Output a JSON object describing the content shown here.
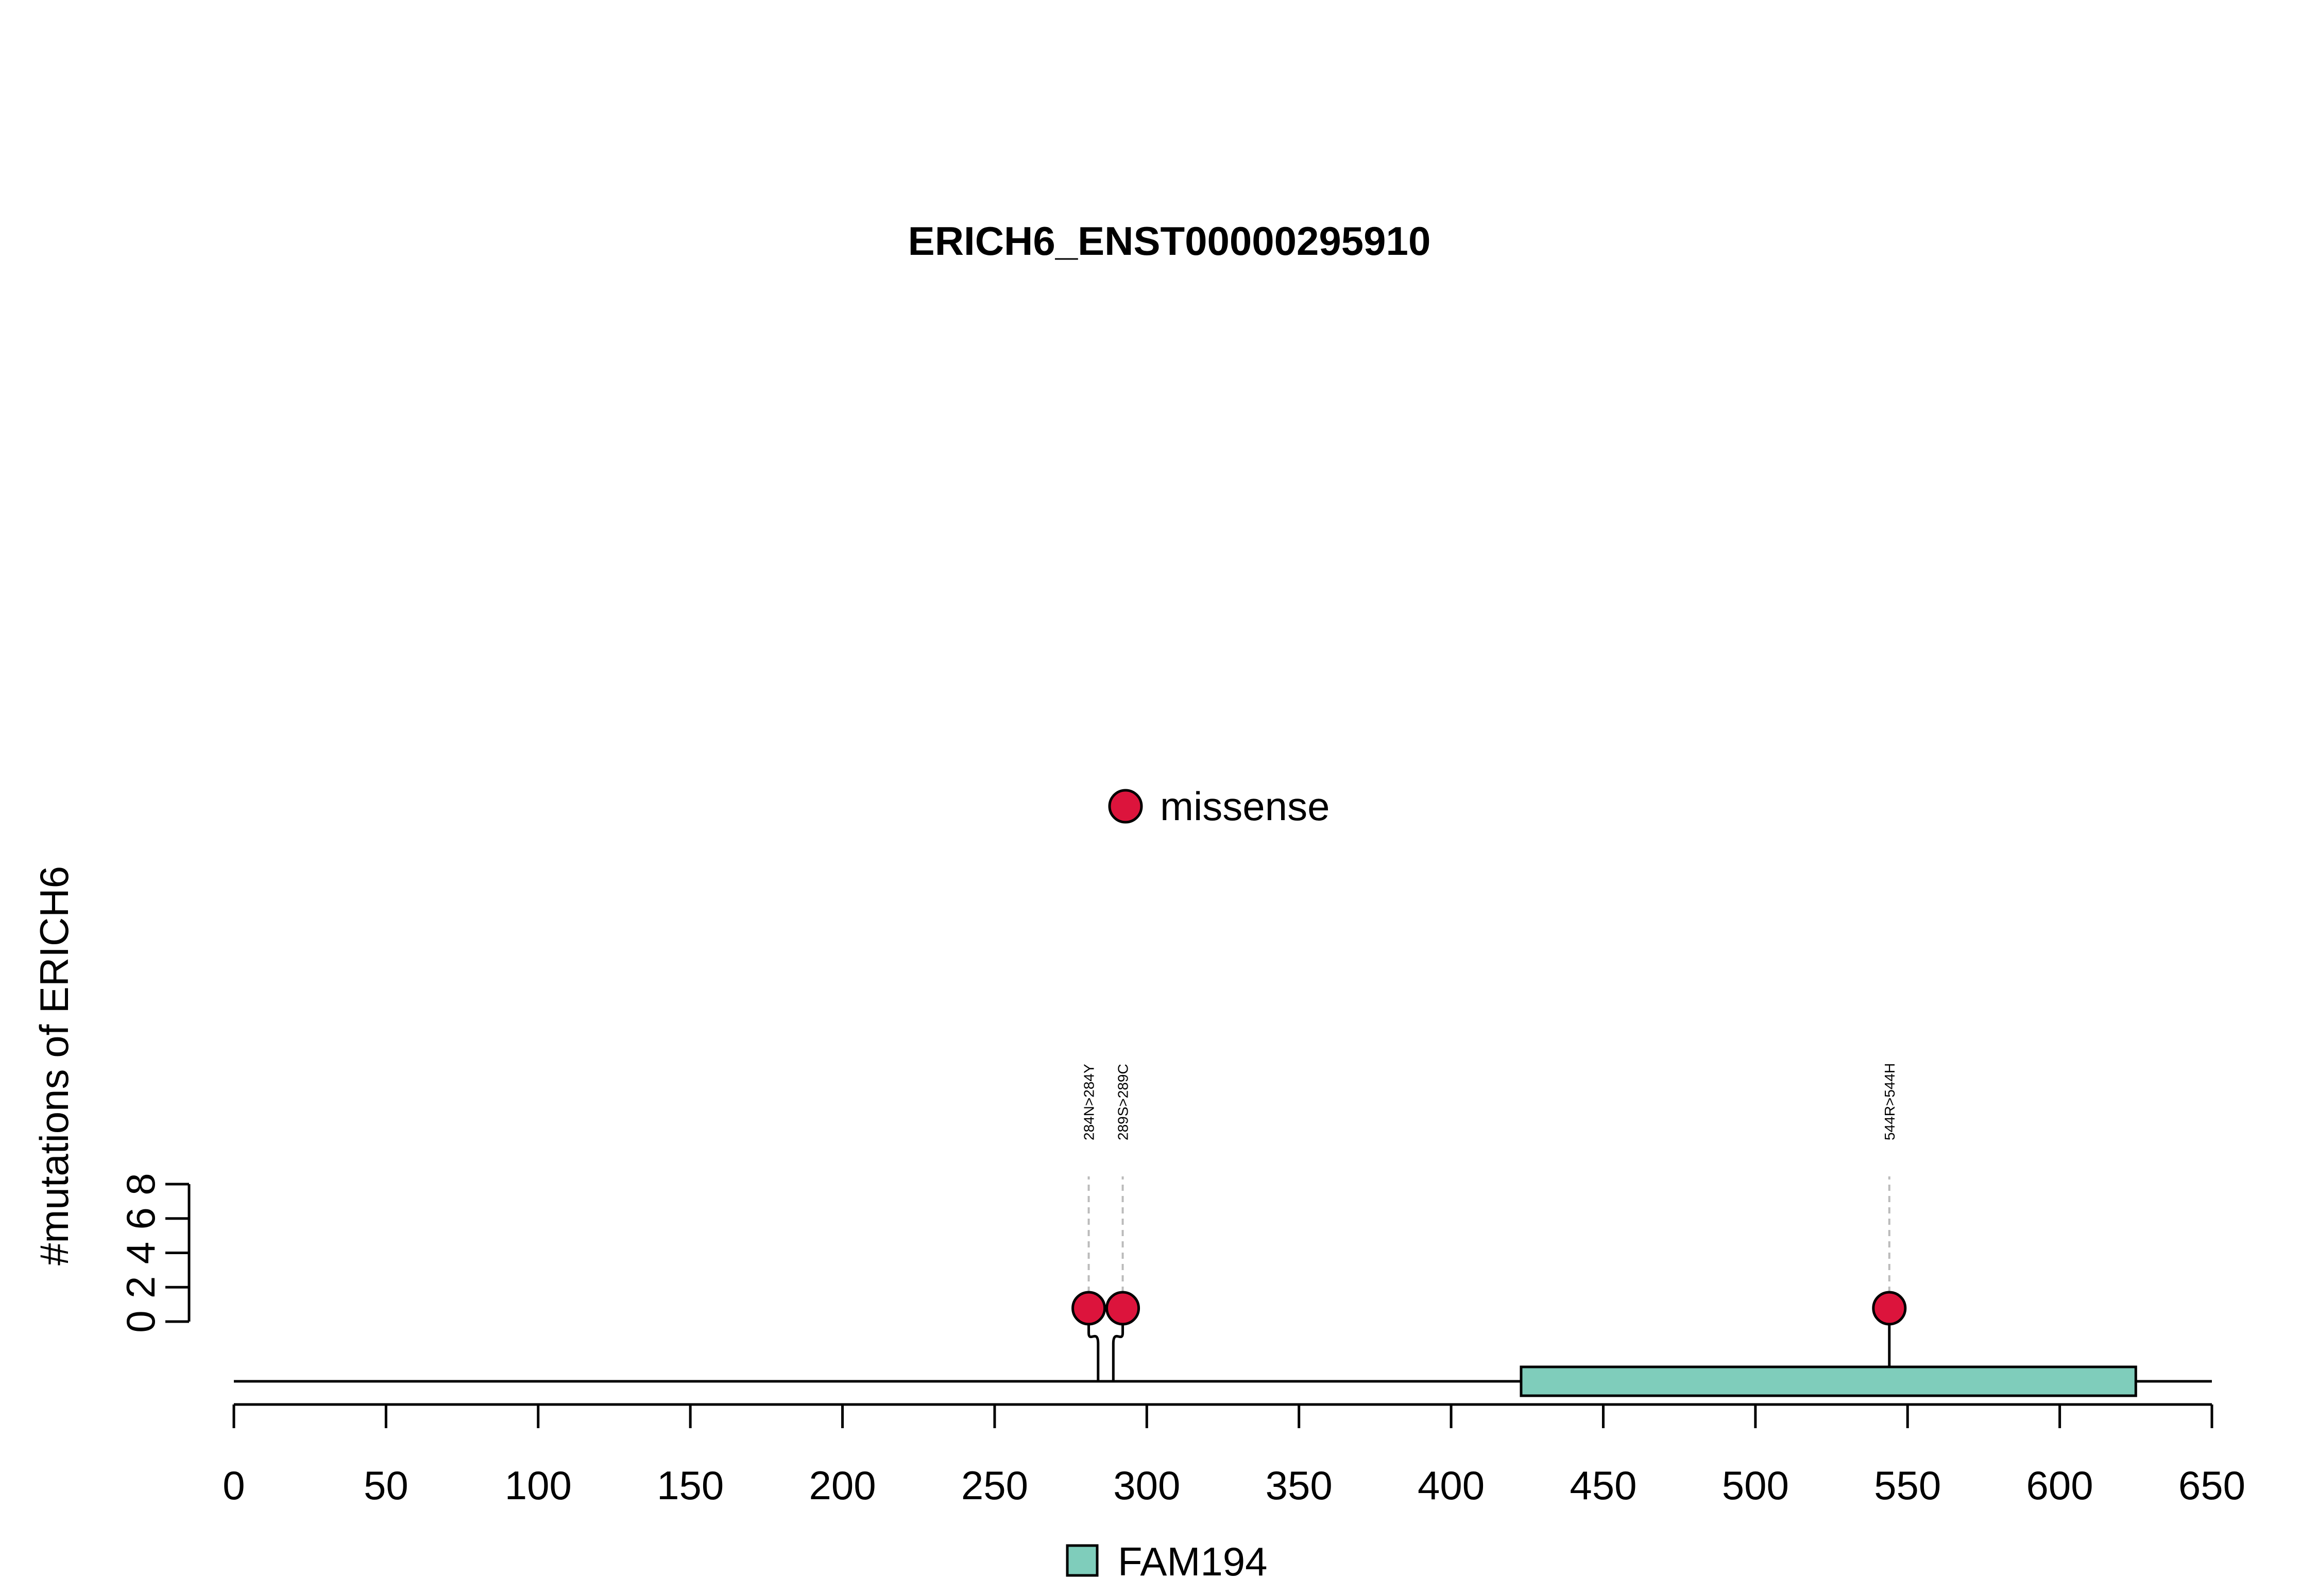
{
  "chart_data": {
    "type": "lollipop",
    "title": "ERICH6_ENST00000295910",
    "ylabel": "#mutations of ERICH6",
    "x_range": [
      0,
      650
    ],
    "x_ticks": [
      0,
      50,
      100,
      150,
      200,
      250,
      300,
      350,
      400,
      450,
      500,
      550,
      600,
      650
    ],
    "y_range": [
      0,
      8
    ],
    "y_ticks": [
      0,
      2,
      4,
      6,
      8
    ],
    "protein_length": 650,
    "mutation_legend": [
      {
        "label": "missense",
        "color": "#DC143C"
      }
    ],
    "domain_legend": [
      {
        "label": "FAM194",
        "color": "#7FCDBB"
      }
    ],
    "domains": [
      {
        "name": "FAM194",
        "start": 423,
        "end": 625,
        "color": "#7FCDBB"
      }
    ],
    "mutations": [
      {
        "label": "284N>284Y",
        "position": 284,
        "count": 1,
        "type": "missense",
        "color": "#DC143C"
      },
      {
        "label": "289S>289C",
        "position": 289,
        "count": 1,
        "type": "missense",
        "color": "#DC143C"
      },
      {
        "label": "544R>544H",
        "position": 544,
        "count": 1,
        "type": "missense",
        "color": "#DC143C"
      }
    ]
  }
}
